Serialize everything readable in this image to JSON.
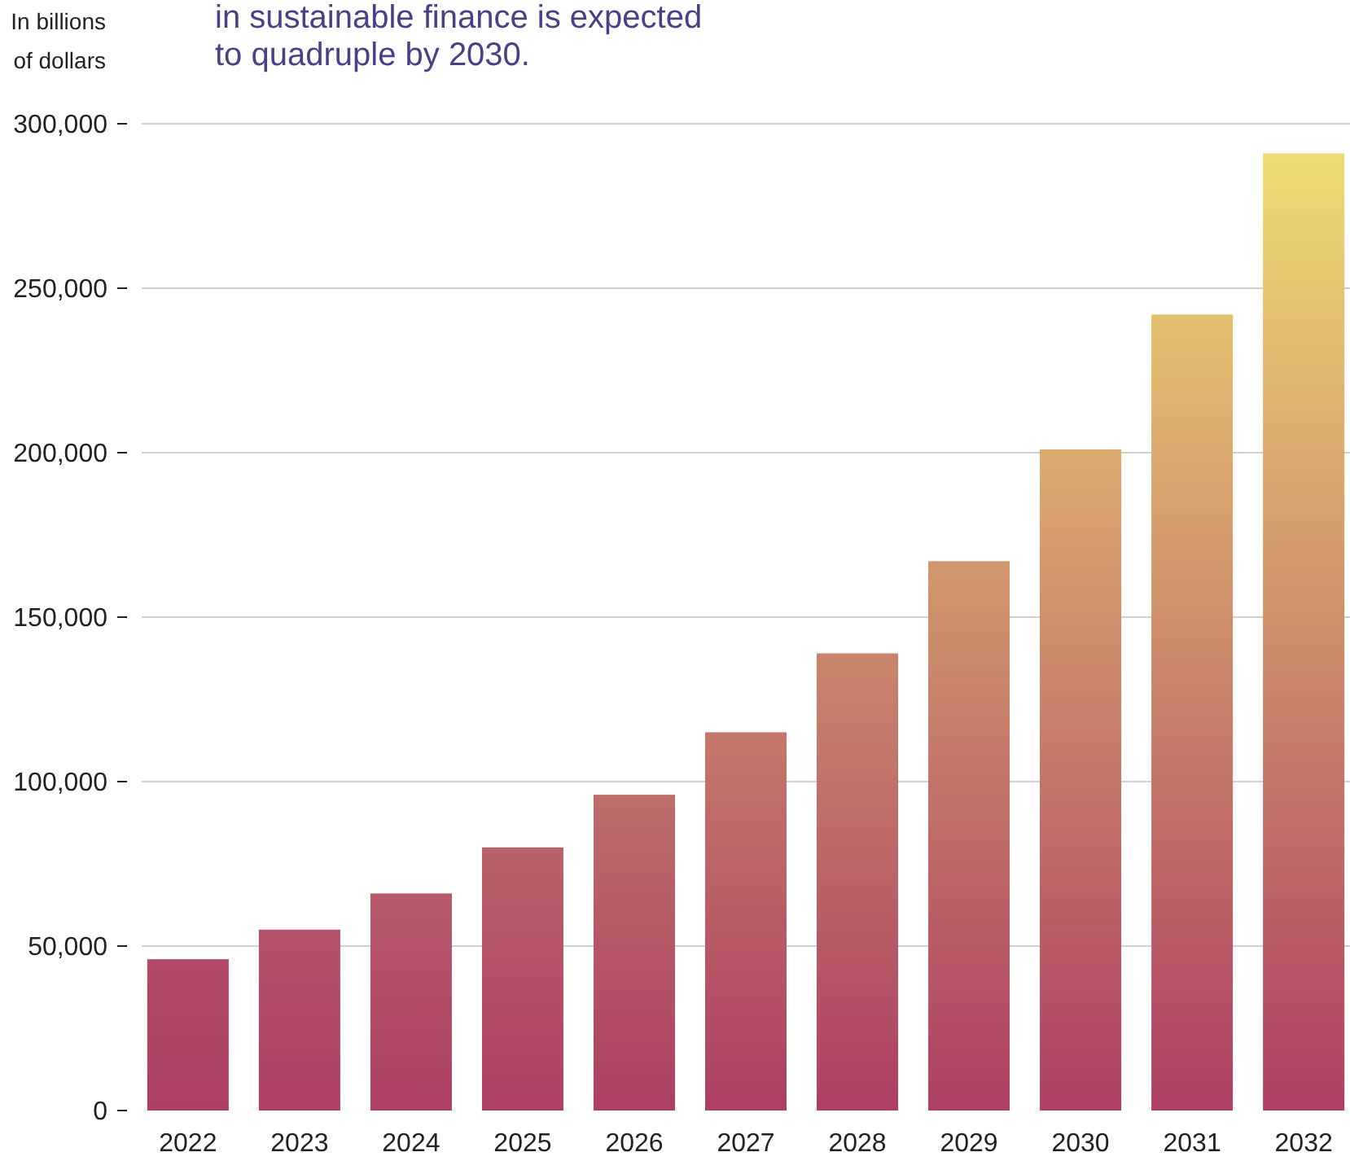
{
  "chart_data": {
    "type": "bar",
    "title": "in sustainable finance is expected\nto quadruple by 2030.",
    "ylabel": "In billions\nof dollars",
    "categories": [
      "2022",
      "2023",
      "2024",
      "2025",
      "2026",
      "2027",
      "2028",
      "2029",
      "2030",
      "2031",
      "2032"
    ],
    "values": [
      46000,
      55000,
      66000,
      80000,
      96000,
      115000,
      139000,
      167000,
      201000,
      242000,
      291000
    ],
    "colors": [
      "#b04a66",
      "#b3536a",
      "#b65a6a",
      "#b9626a",
      "#bd6d6a",
      "#c4786a",
      "#c9866b",
      "#d1986c",
      "#dbab6e",
      "#e3c070",
      "#eedc72"
    ],
    "ylim": [
      0,
      300000
    ],
    "yticks": [
      {
        "value": 0,
        "label": "0"
      },
      {
        "value": 50000,
        "label": "50,000"
      },
      {
        "value": 100000,
        "label": "100,000"
      },
      {
        "value": 150000,
        "label": "150,000"
      },
      {
        "value": 200000,
        "label": "200,000"
      },
      {
        "value": 250000,
        "label": "250,000"
      },
      {
        "value": 300000,
        "label": "300,000"
      }
    ],
    "grid": "y"
  }
}
